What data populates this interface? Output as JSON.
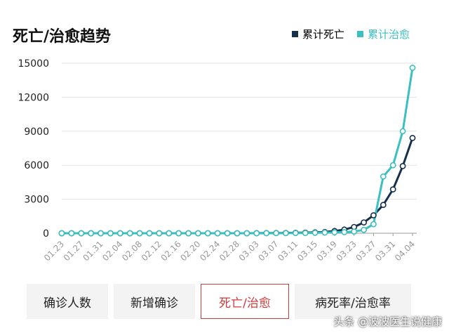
{
  "header": {
    "title": "死亡/治愈趋势"
  },
  "colors": {
    "death": "#14304a",
    "recovered": "#3bbfbf",
    "active_tab": "#d03b3b"
  },
  "tabs": [
    {
      "label": "确诊人数",
      "active": false
    },
    {
      "label": "新增确诊",
      "active": false
    },
    {
      "label": "死亡/治愈",
      "active": true
    },
    {
      "label": "病死率/治愈率",
      "active": false
    }
  ],
  "watermark": "头条 @波波医生说健康",
  "chart_data": {
    "type": "line",
    "title": "死亡/治愈趋势",
    "xlabel": "",
    "ylabel": "",
    "ylim": [
      0,
      15000
    ],
    "yticks": [
      0,
      3000,
      6000,
      9000,
      12000,
      15000
    ],
    "grid": true,
    "legend_position": "top-right",
    "x": [
      "01.23",
      "01.25",
      "01.27",
      "01.29",
      "01.31",
      "02.02",
      "02.04",
      "02.06",
      "02.08",
      "02.10",
      "02.12",
      "02.14",
      "02.16",
      "02.18",
      "02.20",
      "02.22",
      "02.24",
      "02.26",
      "02.28",
      "03.01",
      "03.03",
      "03.05",
      "03.07",
      "03.09",
      "03.11",
      "03.13",
      "03.15",
      "03.17",
      "03.19",
      "03.21",
      "03.23",
      "03.25",
      "03.27",
      "03.29",
      "03.31",
      "04.02",
      "04.04"
    ],
    "xtick_labels": [
      "01.23",
      "01.27",
      "01.31",
      "02.04",
      "02.08",
      "02.12",
      "02.16",
      "02.20",
      "02.24",
      "02.28",
      "03.03",
      "03.07",
      "03.11",
      "03.15",
      "03.19",
      "03.23",
      "03.27",
      "03.31",
      "04.04"
    ],
    "series": [
      {
        "name": "累计死亡",
        "values": [
          0,
          0,
          0,
          0,
          0,
          0,
          0,
          0,
          0,
          0,
          0,
          0,
          0,
          0,
          0,
          0,
          0,
          0,
          1,
          1,
          6,
          11,
          17,
          26,
          38,
          58,
          73,
          108,
          200,
          324,
          550,
          957,
          1582,
          2501,
          3873,
          5925,
          8407
        ]
      },
      {
        "name": "累计治愈",
        "values": [
          0,
          0,
          0,
          0,
          0,
          0,
          0,
          0,
          0,
          0,
          0,
          0,
          0,
          0,
          0,
          0,
          0,
          0,
          1,
          3,
          3,
          7,
          10,
          15,
          20,
          25,
          40,
          60,
          80,
          100,
          150,
          300,
          800,
          5000,
          6000,
          9000,
          14600
        ]
      }
    ]
  }
}
